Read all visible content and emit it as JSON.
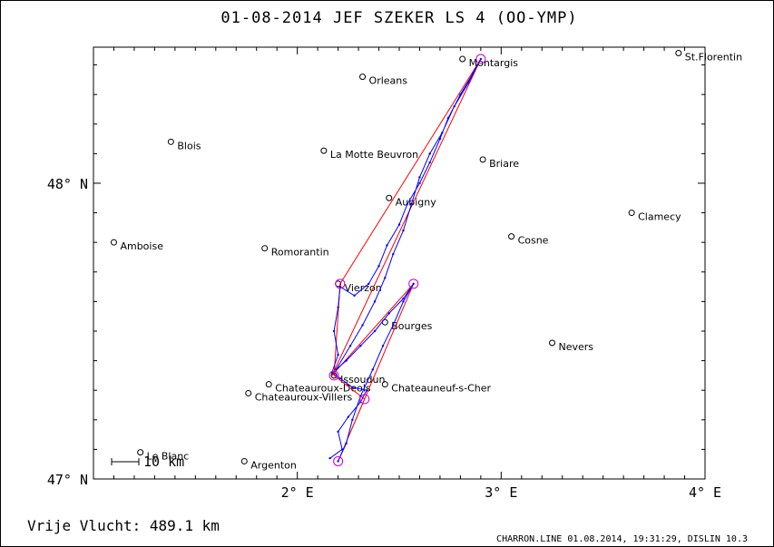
{
  "chart_data": {
    "type": "map-plot",
    "title": "01-08-2014    JEF SZEKER    LS 4 (OO-YMP)",
    "x_axis": {
      "min": 1.0,
      "max": 4.0,
      "ticks": [
        {
          "value": 2,
          "label": "2° E"
        },
        {
          "value": 3,
          "label": "3° E"
        },
        {
          "value": 4,
          "label": "4° E"
        }
      ]
    },
    "y_axis": {
      "min": 47.0,
      "max": 48.46,
      "ticks": [
        {
          "value": 47,
          "label": "47° N"
        },
        {
          "value": 48,
          "label": "48° N"
        }
      ]
    },
    "scale_bar_label": "10 km",
    "places": [
      {
        "name": "St.Florentin",
        "lon": 3.87,
        "lat": 48.44
      },
      {
        "name": "Montargis",
        "lon": 2.81,
        "lat": 48.42
      },
      {
        "name": "Orleans",
        "lon": 2.32,
        "lat": 48.36
      },
      {
        "name": "Blois",
        "lon": 1.38,
        "lat": 48.14
      },
      {
        "name": "La Motte Beuvron",
        "lon": 2.13,
        "lat": 48.11
      },
      {
        "name": "Briare",
        "lon": 2.91,
        "lat": 48.08
      },
      {
        "name": "Aubigny",
        "lon": 2.45,
        "lat": 47.95
      },
      {
        "name": "Clamecy",
        "lon": 3.64,
        "lat": 47.9
      },
      {
        "name": "Amboise",
        "lon": 1.1,
        "lat": 47.8
      },
      {
        "name": "Cosne",
        "lon": 3.05,
        "lat": 47.82
      },
      {
        "name": "Romorantin",
        "lon": 1.84,
        "lat": 47.78
      },
      {
        "name": "Vierzon",
        "lon": 2.2,
        "lat": 47.66
      },
      {
        "name": "Bourges",
        "lon": 2.43,
        "lat": 47.53
      },
      {
        "name": "Nevers",
        "lon": 3.25,
        "lat": 47.46
      },
      {
        "name": "Issoudun",
        "lon": 2.18,
        "lat": 47.35
      },
      {
        "name": "Chateauneuf-s-Cher",
        "lon": 2.43,
        "lat": 47.32
      },
      {
        "name": "Chateauroux-Deols",
        "lon": 1.86,
        "lat": 47.32
      },
      {
        "name": "Chateauroux-Villers",
        "lon": 1.76,
        "lat": 47.29
      },
      {
        "name": "Le Blanc",
        "lon": 1.23,
        "lat": 47.09
      },
      {
        "name": "Argenton",
        "lon": 1.74,
        "lat": 47.06
      }
    ],
    "task_line": [
      {
        "lon": 2.2,
        "lat": 47.06
      },
      {
        "lon": 2.33,
        "lat": 47.27
      },
      {
        "lon": 2.18,
        "lat": 47.35
      },
      {
        "lon": 2.21,
        "lat": 47.66
      },
      {
        "lon": 2.9,
        "lat": 48.42
      },
      {
        "lon": 2.17,
        "lat": 47.35
      },
      {
        "lon": 2.57,
        "lat": 47.66
      },
      {
        "lon": 2.2,
        "lat": 47.06
      }
    ],
    "turnpoint_circles": [
      {
        "lon": 2.2,
        "lat": 47.06
      },
      {
        "lon": 2.33,
        "lat": 47.27
      },
      {
        "lon": 2.18,
        "lat": 47.35
      },
      {
        "lon": 2.21,
        "lat": 47.66
      },
      {
        "lon": 2.9,
        "lat": 48.42
      },
      {
        "lon": 2.57,
        "lat": 47.66
      }
    ],
    "flight_track": [
      {
        "lon": 2.16,
        "lat": 47.07
      },
      {
        "lon": 2.22,
        "lat": 47.1
      },
      {
        "lon": 2.2,
        "lat": 47.16
      },
      {
        "lon": 2.25,
        "lat": 47.21
      },
      {
        "lon": 2.31,
        "lat": 47.26
      },
      {
        "lon": 2.34,
        "lat": 47.3
      },
      {
        "lon": 2.27,
        "lat": 47.31
      },
      {
        "lon": 2.21,
        "lat": 47.34
      },
      {
        "lon": 2.17,
        "lat": 47.36
      },
      {
        "lon": 2.2,
        "lat": 47.42
      },
      {
        "lon": 2.18,
        "lat": 47.5
      },
      {
        "lon": 2.2,
        "lat": 47.58
      },
      {
        "lon": 2.21,
        "lat": 47.65
      },
      {
        "lon": 2.28,
        "lat": 47.62
      },
      {
        "lon": 2.35,
        "lat": 47.66
      },
      {
        "lon": 2.4,
        "lat": 47.72
      },
      {
        "lon": 2.44,
        "lat": 47.79
      },
      {
        "lon": 2.5,
        "lat": 47.86
      },
      {
        "lon": 2.54,
        "lat": 47.93
      },
      {
        "lon": 2.6,
        "lat": 48.0
      },
      {
        "lon": 2.65,
        "lat": 48.07
      },
      {
        "lon": 2.7,
        "lat": 48.15
      },
      {
        "lon": 2.74,
        "lat": 48.22
      },
      {
        "lon": 2.8,
        "lat": 48.3
      },
      {
        "lon": 2.86,
        "lat": 48.37
      },
      {
        "lon": 2.9,
        "lat": 48.42
      },
      {
        "lon": 2.84,
        "lat": 48.34
      },
      {
        "lon": 2.77,
        "lat": 48.26
      },
      {
        "lon": 2.71,
        "lat": 48.17
      },
      {
        "lon": 2.65,
        "lat": 48.1
      },
      {
        "lon": 2.6,
        "lat": 48.02
      },
      {
        "lon": 2.56,
        "lat": 47.93
      },
      {
        "lon": 2.52,
        "lat": 47.84
      },
      {
        "lon": 2.47,
        "lat": 47.76
      },
      {
        "lon": 2.43,
        "lat": 47.68
      },
      {
        "lon": 2.38,
        "lat": 47.6
      },
      {
        "lon": 2.32,
        "lat": 47.52
      },
      {
        "lon": 2.26,
        "lat": 47.45
      },
      {
        "lon": 2.19,
        "lat": 47.37
      },
      {
        "lon": 2.24,
        "lat": 47.4
      },
      {
        "lon": 2.31,
        "lat": 47.45
      },
      {
        "lon": 2.38,
        "lat": 47.5
      },
      {
        "lon": 2.45,
        "lat": 47.56
      },
      {
        "lon": 2.52,
        "lat": 47.61
      },
      {
        "lon": 2.57,
        "lat": 47.66
      },
      {
        "lon": 2.52,
        "lat": 47.6
      },
      {
        "lon": 2.47,
        "lat": 47.52
      },
      {
        "lon": 2.42,
        "lat": 47.45
      },
      {
        "lon": 2.37,
        "lat": 47.37
      },
      {
        "lon": 2.31,
        "lat": 47.28
      },
      {
        "lon": 2.27,
        "lat": 47.2
      },
      {
        "lon": 2.24,
        "lat": 47.12
      },
      {
        "lon": 2.2,
        "lat": 47.06
      }
    ],
    "colors": {
      "track": "#0000ff",
      "task": "#ff0000",
      "turnpoint": "#cc00cc",
      "axes": "#000000"
    }
  },
  "footer": {
    "distance_label": "Vrije Vlucht:  489.1 km",
    "program_info": "CHARRON.LINE 01.08.2014, 19:31:29, DISLIN 10.3"
  }
}
